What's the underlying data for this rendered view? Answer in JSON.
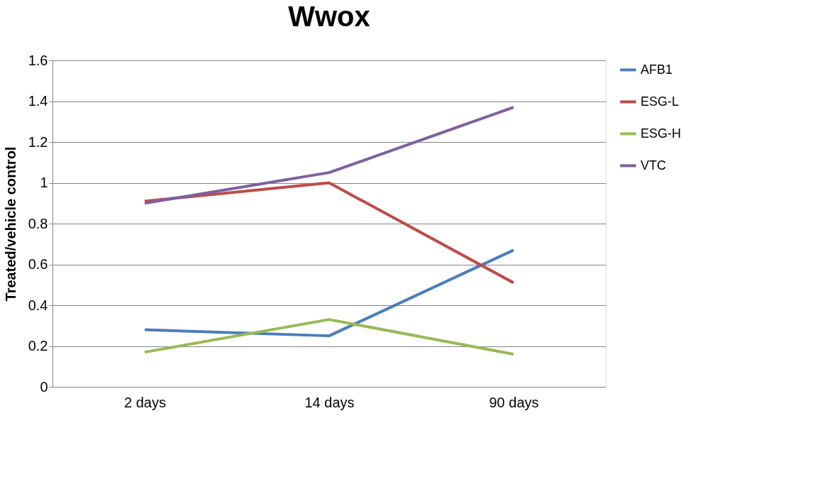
{
  "chart_data": {
    "type": "line",
    "title": "Wwox",
    "ylabel": "Treated/vehicle control",
    "categories": [
      "2 days",
      "14 days",
      "90 days"
    ],
    "series": [
      {
        "name": "AFB1",
        "color": "#4a7ebb",
        "values": [
          0.28,
          0.25,
          0.67
        ]
      },
      {
        "name": "ESG-L",
        "color": "#be4b48",
        "values": [
          0.91,
          1.0,
          0.51
        ]
      },
      {
        "name": "ESG-H",
        "color": "#98b954",
        "values": [
          0.17,
          0.33,
          0.16
        ]
      },
      {
        "name": "VTC",
        "color": "#7d60a0",
        "values": [
          0.9,
          1.05,
          1.37
        ]
      }
    ],
    "ylim": [
      0,
      1.6
    ],
    "yticks": [
      0,
      0.2,
      0.4,
      0.6,
      0.8,
      1,
      1.2,
      1.4,
      1.6
    ],
    "grid": "y",
    "legend": "right",
    "marker": "none",
    "line_style": "solid"
  }
}
